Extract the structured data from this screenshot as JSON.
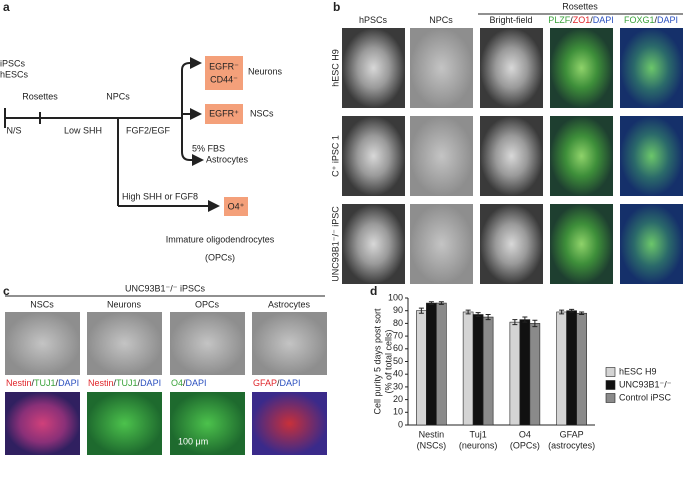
{
  "panel_a": {
    "label": "a",
    "start": [
      "iPSCs",
      "hESCs"
    ],
    "steps": [
      "N/S",
      "Rosettes",
      "Low SHH",
      "NPCs",
      "FGF2/EGF"
    ],
    "neuron_box": [
      "EGFR⁻",
      "CD44⁻"
    ],
    "neurons": "Neurons",
    "nsc_box": "EGFR⁺",
    "nscs": "NSCs",
    "fbs": "5% FBS",
    "astrocytes": "Astrocytes",
    "shh": "High SHH or FGF8",
    "opc_box": "O4⁺",
    "opc": [
      "Immature oligodendrocytes",
      "(OPCs)"
    ]
  },
  "panel_b": {
    "label": "b",
    "group": "Rosettes",
    "columns": [
      [
        {
          "text": "hPSCs",
          "color": "#222222"
        }
      ],
      [
        {
          "text": "NPCs",
          "color": "#222222"
        }
      ],
      [
        {
          "text": "Bright-field",
          "color": "#222222"
        }
      ],
      [
        {
          "text": "PLZF",
          "color": "#3aa33a"
        },
        {
          "text": "/",
          "color": "#222222"
        },
        {
          "text": "ZO1",
          "color": "#e0262b"
        },
        {
          "text": "/",
          "color": "#222222"
        },
        {
          "text": "DAPI",
          "color": "#2a4fbf"
        }
      ],
      [
        {
          "text": "FOXG1",
          "color": "#3aa33a"
        },
        {
          "text": "/",
          "color": "#222222"
        },
        {
          "text": "DAPI",
          "color": "#2a4fbf"
        }
      ]
    ],
    "rows": [
      "hESC H9",
      "C⁺ iPSC 1",
      "UNC93B1⁻/⁻ iPSC"
    ]
  },
  "panel_c": {
    "label": "c",
    "title": "UNC93B1⁻/⁻ iPSCs",
    "columns": [
      "NSCs",
      "Neurons",
      "OPCs",
      "Astrocytes"
    ],
    "stains": [
      [
        {
          "text": "Nestin",
          "color": "#e0262b"
        },
        {
          "text": "/",
          "color": "#222222"
        },
        {
          "text": "TUJ1",
          "color": "#3aa33a"
        },
        {
          "text": "/",
          "color": "#222222"
        },
        {
          "text": "DAPI",
          "color": "#2a4fbf"
        }
      ],
      [
        {
          "text": "Nestin",
          "color": "#e0262b"
        },
        {
          "text": "/",
          "color": "#222222"
        },
        {
          "text": "TUJ1",
          "color": "#3aa33a"
        },
        {
          "text": "/",
          "color": "#222222"
        },
        {
          "text": "DAPI",
          "color": "#2a4fbf"
        }
      ],
      [
        {
          "text": "O4",
          "color": "#3aa33a"
        },
        {
          "text": "/",
          "color": "#222222"
        },
        {
          "text": "DAPI",
          "color": "#2a4fbf"
        }
      ],
      [
        {
          "text": "GFAP",
          "color": "#e0262b"
        },
        {
          "text": "/",
          "color": "#222222"
        },
        {
          "text": "DAPI",
          "color": "#2a4fbf"
        }
      ]
    ],
    "scale": "100 μm"
  },
  "chart_data": {
    "type": "bar",
    "label": "d",
    "ylabel": [
      "Cell purity 5 days post sort",
      "(% of total cells)"
    ],
    "categories": [
      [
        "Nestin",
        "(NSCs)"
      ],
      [
        "Tuj1",
        "(neurons)"
      ],
      [
        "O4",
        "(OPCs)"
      ],
      [
        "GFAP",
        "(astrocytes)"
      ]
    ],
    "series": [
      {
        "name": "hESC H9",
        "color": "#d4d4d4",
        "values": [
          90,
          89,
          81,
          89
        ],
        "errors": [
          2,
          1.5,
          2,
          1.5
        ]
      },
      {
        "name": "UNC93B1⁻/⁻",
        "color": "#111111",
        "values": [
          96,
          87,
          83,
          90
        ],
        "errors": [
          1,
          1.5,
          2,
          1
        ]
      },
      {
        "name": "Control iPSC",
        "color": "#8a8a8a",
        "values": [
          96,
          85,
          80,
          88
        ],
        "errors": [
          1,
          2,
          2.5,
          1
        ]
      }
    ],
    "ylim": [
      0,
      100
    ],
    "yticks": [
      0,
      10,
      20,
      30,
      40,
      50,
      60,
      70,
      80,
      90,
      100
    ],
    "grid": false
  }
}
